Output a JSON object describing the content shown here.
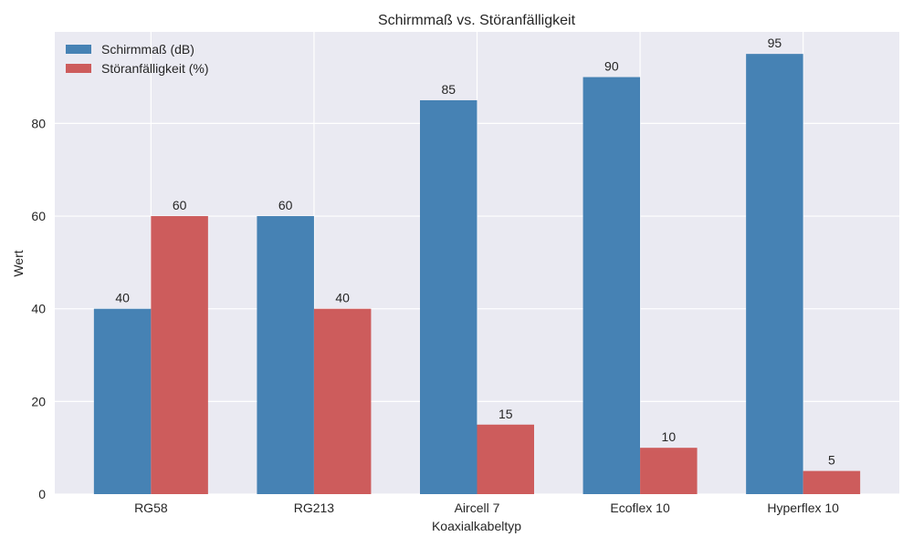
{
  "chart_data": {
    "type": "bar",
    "title": "Schirmmaß vs. Störanfälligkeit",
    "xlabel": "Koaxialkabeltyp",
    "ylabel": "Wert",
    "categories": [
      "RG58",
      "RG213",
      "Aircell 7",
      "Ecoflex 10",
      "Hyperflex 10"
    ],
    "series": [
      {
        "name": "Schirmmaß (dB)",
        "values": [
          40,
          60,
          85,
          90,
          95
        ],
        "color": "#4682B4"
      },
      {
        "name": "Störanfälligkeit (%)",
        "values": [
          60,
          40,
          15,
          10,
          5
        ],
        "color": "#CD5C5C"
      }
    ],
    "ylim": [
      0,
      99.75
    ],
    "yticks": [
      0,
      20,
      40,
      60,
      80
    ],
    "grid": true,
    "legend": "top-left"
  }
}
